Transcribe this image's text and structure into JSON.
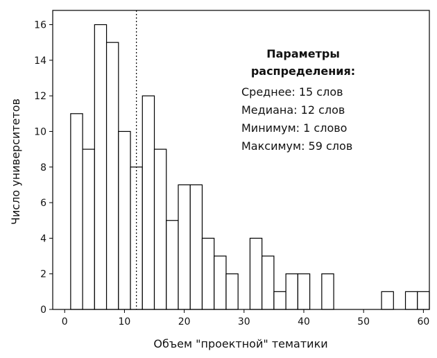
{
  "chart_data": {
    "type": "bar",
    "subtype": "histogram",
    "xlabel": "Объем \"проектной\" тематики",
    "ylabel": "Число университетов",
    "xlim": [
      -2,
      61
    ],
    "ylim": [
      0,
      16.8
    ],
    "xticks": [
      0,
      10,
      20,
      30,
      40,
      50,
      60
    ],
    "yticks": [
      0,
      2,
      4,
      6,
      8,
      10,
      12,
      14,
      16
    ],
    "bin_width": 2,
    "bins": [
      {
        "x0": 1,
        "x1": 3,
        "count": 11
      },
      {
        "x0": 3,
        "x1": 5,
        "count": 9
      },
      {
        "x0": 5,
        "x1": 7,
        "count": 16
      },
      {
        "x0": 7,
        "x1": 9,
        "count": 15
      },
      {
        "x0": 9,
        "x1": 11,
        "count": 10
      },
      {
        "x0": 11,
        "x1": 13,
        "count": 8
      },
      {
        "x0": 13,
        "x1": 15,
        "count": 12
      },
      {
        "x0": 15,
        "x1": 17,
        "count": 9
      },
      {
        "x0": 17,
        "x1": 19,
        "count": 5
      },
      {
        "x0": 19,
        "x1": 21,
        "count": 7
      },
      {
        "x0": 21,
        "x1": 23,
        "count": 7
      },
      {
        "x0": 23,
        "x1": 25,
        "count": 4
      },
      {
        "x0": 25,
        "x1": 27,
        "count": 3
      },
      {
        "x0": 27,
        "x1": 29,
        "count": 2
      },
      {
        "x0": 31,
        "x1": 33,
        "count": 4
      },
      {
        "x0": 33,
        "x1": 35,
        "count": 3
      },
      {
        "x0": 35,
        "x1": 37,
        "count": 1
      },
      {
        "x0": 37,
        "x1": 39,
        "count": 2
      },
      {
        "x0": 39,
        "x1": 41,
        "count": 2
      },
      {
        "x0": 43,
        "x1": 45,
        "count": 2
      },
      {
        "x0": 53,
        "x1": 55,
        "count": 1
      },
      {
        "x0": 57,
        "x1": 59,
        "count": 1
      },
      {
        "x0": 59,
        "x1": 61,
        "count": 1
      }
    ],
    "median_line": {
      "x": 12,
      "style": "dotted"
    },
    "annotation": {
      "title_lines": [
        "Параметры",
        "распределения:"
      ],
      "lines": [
        "Среднее: 15 слов",
        "Медиана: 12 слов",
        "Минимум: 1 слово",
        "Максимум: 59 слов"
      ]
    },
    "grid": false,
    "bar_fill": "#ffffff",
    "bar_stroke": "#000000"
  }
}
